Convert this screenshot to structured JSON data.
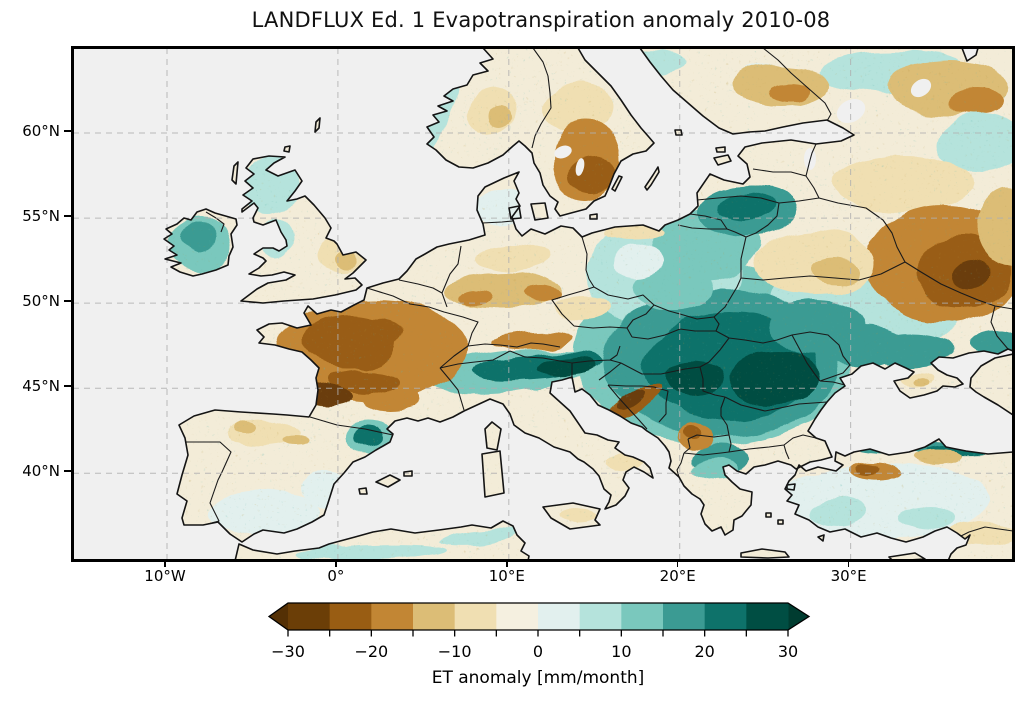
{
  "title": "LANDFLUX Ed. 1 Evapotranspiration anomaly 2010-08",
  "axes": {
    "x_ticks": [
      {
        "label": "10°W",
        "lon": -10
      },
      {
        "label": "0°",
        "lon": 0
      },
      {
        "label": "10°E",
        "lon": 10
      },
      {
        "label": "20°E",
        "lon": 20
      },
      {
        "label": "30°E",
        "lon": 30
      }
    ],
    "y_ticks": [
      {
        "label": "60°N",
        "lat": 60
      },
      {
        "label": "55°N",
        "lat": 55
      },
      {
        "label": "50°N",
        "lat": 50
      },
      {
        "label": "45°N",
        "lat": 45
      },
      {
        "label": "40°N",
        "lat": 40
      }
    ],
    "extent": {
      "lon_min": -15.5,
      "lon_max": 39.5,
      "lat_min": 34.9,
      "lat_max": 65.0
    },
    "grid": {
      "visible": true,
      "style": "dashed"
    }
  },
  "colorbar": {
    "label": "ET anomaly [mm/month]",
    "orientation": "horizontal",
    "extend": "both",
    "range": [
      -30,
      30
    ],
    "levels": [
      -30,
      -25,
      -20,
      -15,
      -10,
      -5,
      0,
      5,
      10,
      15,
      20,
      25,
      30
    ],
    "tick_values": [
      -30,
      -20,
      -10,
      0,
      10,
      20,
      30
    ],
    "tick_labels": [
      "−30",
      "−20",
      "−10",
      "0",
      "10",
      "20",
      "30"
    ],
    "minor_tick_step": 5,
    "colors": [
      "#6b3e07",
      "#995d13",
      "#c28634",
      "#dcbd76",
      "#f0dfb2",
      "#f5f0e0",
      "#e2f0ee",
      "#b5e3dc",
      "#7ac8bd",
      "#3b9b93",
      "#0e726a",
      "#004e43"
    ],
    "under": "#543005",
    "over": "#003c30",
    "colormap": "BrBG"
  },
  "map": {
    "sea": "#f0f0f0",
    "land_base": "#f3ecd8",
    "coast": "#141414",
    "border": "#1a1a1a",
    "grid_color": "#b0b0b0",
    "projection": "PlateCarree"
  },
  "anomaly_regions": [
    {
      "region": "Pannonian Basin / Romania / Serbia / Bulgaria",
      "anomaly_mm_month": "+20 to +30"
    },
    {
      "region": "Western Ukraine / Moldova",
      "anomaly_mm_month": "+10 to +25"
    },
    {
      "region": "Poland / Lithuania / Latvia",
      "anomaly_mm_month": "+10 to +25"
    },
    {
      "region": "Alps / Po valley",
      "anomaly_mm_month": "+20 to +30"
    },
    {
      "region": "Ireland / Scotland",
      "anomaly_mm_month": "+5 to +15"
    },
    {
      "region": "NE Spain (Catalonia)",
      "anomaly_mm_month": "+15 to +25"
    },
    {
      "region": "Turkish Black Sea coast / Georgia",
      "anomaly_mm_month": "+10 to +20"
    },
    {
      "region": "Northern Greece",
      "anomaly_mm_month": "+10 to +20"
    },
    {
      "region": "France (west and southwest)",
      "anomaly_mm_month": "-15 to -30"
    },
    {
      "region": "Southern Sweden",
      "anomaly_mm_month": "-10 to -25"
    },
    {
      "region": "Southern Finland",
      "anomaly_mm_month": "-5 to -15"
    },
    {
      "region": "Western Russia (east edge of map)",
      "anomaly_mm_month": "-15 to -30"
    },
    {
      "region": "Central Germany",
      "anomaly_mm_month": "-5 to -15"
    },
    {
      "region": "Dinaric Alps (Bosnia)",
      "anomaly_mm_month": "-15 to -25"
    },
    {
      "region": "Kosovo / North Macedonia",
      "anomaly_mm_month": "-10 to -20"
    },
    {
      "region": "NW Turkey",
      "anomaly_mm_month": "-10 to -20"
    },
    {
      "region": "Iberia / North Africa / interior Anatolia",
      "anomaly_mm_month": "-5 to +5"
    }
  ]
}
